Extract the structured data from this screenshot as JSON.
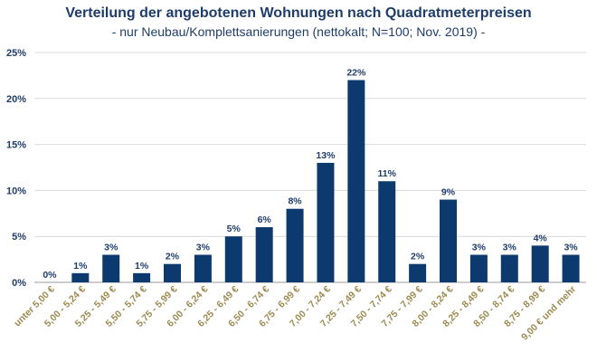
{
  "chart_data": {
    "type": "bar",
    "title": "Verteilung der angebotenen Wohnungen nach Quadratmeterpreisen",
    "subtitle": "- nur Neubau/Komplettsanierungen (nettokalt; N=100; Nov. 2019) -",
    "xlabel": "",
    "ylabel": "",
    "ylim": [
      0,
      25
    ],
    "yticks": [
      0,
      5,
      10,
      15,
      20,
      25
    ],
    "ytick_labels": [
      "0%",
      "5%",
      "10%",
      "15%",
      "20%",
      "25%"
    ],
    "grid": true,
    "legend": "none",
    "bar_color": "#0d3a6e",
    "categories": [
      "unter 5,00 €",
      "5,00 - 5,24 €",
      "5,25 - 5,49 €",
      "5,50 - 5,74 €",
      "5,75 - 5,99 €",
      "6,00 - 6,24 €",
      "6,25 - 6,49 €",
      "6,50 - 6,74 €",
      "6,75 - 6,99 €",
      "7,00 - 7,24 €",
      "7,25 - 7,49 €",
      "7,50 - 7,74 €",
      "7,75 - 7,99 €",
      "8,00 - 8,24 €",
      "8,25 - 8,49 €",
      "8,50 - 8,74 €",
      "8,75 - 8,99 €",
      "9,00 € und mehr"
    ],
    "values": [
      0,
      1,
      3,
      1,
      2,
      3,
      5,
      6,
      8,
      13,
      22,
      11,
      2,
      9,
      3,
      3,
      4,
      3
    ],
    "data_labels": [
      "0%",
      "1%",
      "3%",
      "1%",
      "2%",
      "3%",
      "5%",
      "6%",
      "8%",
      "13%",
      "22%",
      "11%",
      "2%",
      "9%",
      "3%",
      "3%",
      "4%",
      "3%"
    ]
  }
}
